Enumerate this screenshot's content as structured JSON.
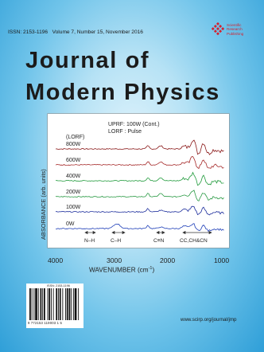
{
  "header": {
    "issn": "ISSN: 2153-1196",
    "volume": "Volume 7, Number 15, November 2016"
  },
  "publisher": {
    "lines": [
      "Scientific",
      "Research",
      "Publishing"
    ]
  },
  "title": {
    "line1": "Journal of",
    "line2": "Modern Physics"
  },
  "figure": {
    "legend_line1": "UPRF: 100W (Cont.)",
    "legend_line2": "LORF : Pulse",
    "lorf": "(LORF)",
    "traces": [
      {
        "label": "800W",
        "color": "#8b1a1a"
      },
      {
        "label": "600W",
        "color": "#a52828"
      },
      {
        "label": "400W",
        "color": "#1f9a3a"
      },
      {
        "label": "200W",
        "color": "#2a9a44"
      },
      {
        "label": "100W",
        "color": "#1c2d9c"
      },
      {
        "label": "0W",
        "color": "#1f3fb8"
      }
    ],
    "ylabel": "ABSORBANCE (arb. units)",
    "xticks": [
      "4000",
      "3000",
      "2000",
      "1000"
    ],
    "xlabel": "WAVENUMBER (cm",
    "xlabel_sup": "-1",
    "xlabel_end": ")",
    "bands": [
      "N–H",
      "C–H",
      "C≡N",
      "CC,CH&CN"
    ]
  },
  "barcode": {
    "issn": "ISSN: 2153-1196",
    "number": "9 772153 119003 1 5"
  },
  "footer": {
    "url": "www.scirp.org/journal/jmp"
  },
  "colors": {
    "background": "#55b6e6",
    "publisher_red": "#d4202e"
  }
}
